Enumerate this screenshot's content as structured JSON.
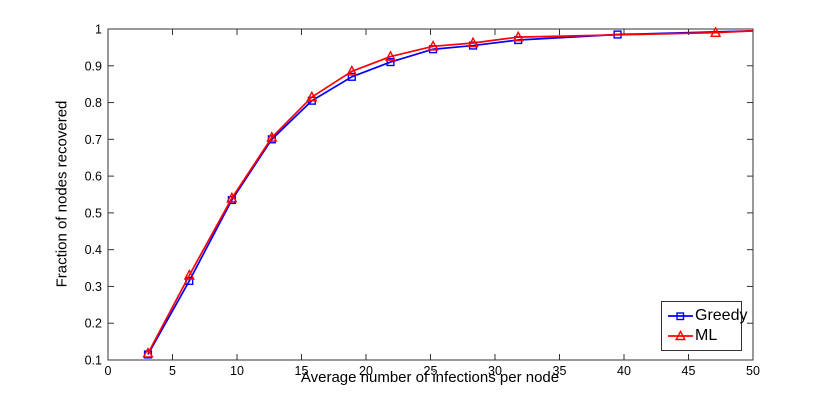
{
  "chart_data": {
    "type": "line",
    "title": "",
    "xlabel": "Average number of infections per node",
    "ylabel": "Fraction of nodes recovered",
    "xlim": [
      0,
      50
    ],
    "ylim": [
      0.1,
      1
    ],
    "x_ticks": [
      0,
      5,
      10,
      15,
      20,
      25,
      30,
      35,
      40,
      45,
      50
    ],
    "x_tick_labels": [
      "0",
      "5",
      "10",
      "15",
      "20",
      "25",
      "30",
      "35",
      "40",
      "45",
      "50"
    ],
    "y_ticks": [
      0.1,
      0.2,
      0.3,
      0.4,
      0.5,
      0.6,
      0.7,
      0.8,
      0.9,
      1
    ],
    "y_tick_labels": [
      "0.1",
      "0.2",
      "0.3",
      "0.4",
      "0.5",
      "0.6",
      "0.7",
      "0.8",
      "0.9",
      "1"
    ],
    "grid": false,
    "legend_position": "bottom-right",
    "series": [
      {
        "name": "Greedy",
        "color": "#0000ff",
        "marker": "square",
        "x": [
          3.1,
          6.3,
          9.6,
          12.7,
          15.8,
          18.9,
          21.9,
          25.2,
          28.3,
          31.8,
          39.5
        ],
        "y": [
          0.115,
          0.315,
          0.535,
          0.7,
          0.805,
          0.87,
          0.91,
          0.945,
          0.955,
          0.97,
          0.985
        ],
        "line_to_edge": {
          "x": 50,
          "y": 0.995
        }
      },
      {
        "name": "ML",
        "color": "#ff0000",
        "marker": "triangle",
        "x": [
          3.1,
          6.3,
          9.6,
          12.7,
          15.8,
          18.9,
          21.9,
          25.2,
          28.3,
          31.8,
          47.1
        ],
        "y": [
          0.118,
          0.33,
          0.54,
          0.705,
          0.815,
          0.885,
          0.925,
          0.953,
          0.962,
          0.978,
          0.99
        ],
        "line_to_edge": {
          "x": 50,
          "y": 0.995
        }
      }
    ]
  },
  "colors": {
    "axis": "#333333",
    "tick_label": "#000000",
    "background": "#ffffff"
  }
}
